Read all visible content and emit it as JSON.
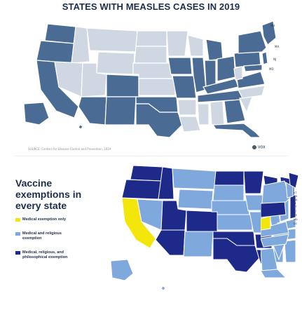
{
  "top_panel": {
    "title": "STATES WITH MEASLES CASES IN 2019",
    "source_text": "SOURCE: Centers for Disease Control and Prevention, 2019",
    "logo_text": "VOX",
    "state_labels": [
      "NH",
      "MA",
      "NJ",
      "MD"
    ],
    "colors": {
      "case_state": "#4a6b93",
      "no_case_state": "#cfd7e3",
      "outline": "#ffffff"
    }
  },
  "bottom_panel": {
    "heading": "Vaccine exemptions in every state",
    "legend": [
      {
        "label": "Medical exemption only",
        "color": "#f2e60b"
      },
      {
        "label": "Medical and religious exemption",
        "color": "#7fa8dc"
      },
      {
        "label": "Medical, religious, and philosophical exemption",
        "color": "#1e2a8a"
      }
    ],
    "state_labels": [
      "VT",
      "NH",
      "MA",
      "RI",
      "CT",
      "NJ",
      "DE",
      "MD",
      "DC"
    ],
    "colors": {
      "medical_only": "#f2e60b",
      "medical_religious": "#7fa8dc",
      "all_three": "#1e2a8a",
      "california": "#f2e60b"
    }
  }
}
